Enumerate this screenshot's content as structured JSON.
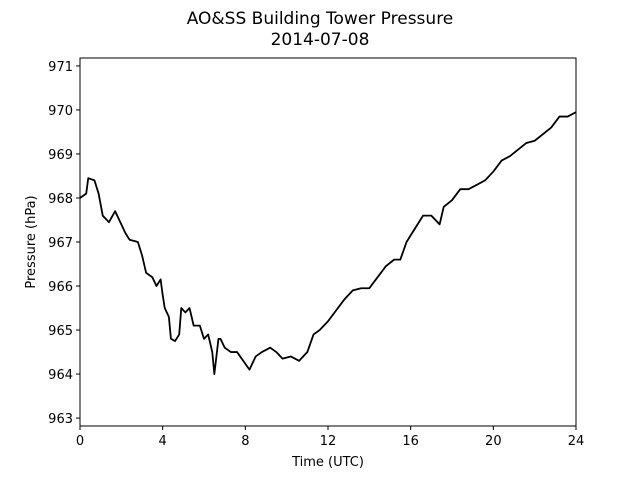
{
  "chart_data": {
    "type": "line",
    "title": "AO&SS Building Tower Pressure",
    "subtitle": "2014-07-08",
    "x_label": "Time (UTC)",
    "y_label": "Pressure (hPa)",
    "x": [
      0,
      0.3,
      0.4,
      0.7,
      0.9,
      1.1,
      1.4,
      1.7,
      1.9,
      2.2,
      2.4,
      2.8,
      3.0,
      3.2,
      3.5,
      3.7,
      3.9,
      4.0,
      4.1,
      4.3,
      4.4,
      4.6,
      4.8,
      4.9,
      5.1,
      5.3,
      5.5,
      5.8,
      6.0,
      6.2,
      6.4,
      6.5,
      6.7,
      6.8,
      7.0,
      7.3,
      7.6,
      7.9,
      8.2,
      8.5,
      8.8,
      9.2,
      9.5,
      9.8,
      10.2,
      10.6,
      11.0,
      11.3,
      11.6,
      12.0,
      12.4,
      12.8,
      13.2,
      13.6,
      14.0,
      14.4,
      14.8,
      15.2,
      15.5,
      15.8,
      16.2,
      16.6,
      17.0,
      17.2,
      17.4,
      17.6,
      18.0,
      18.4,
      18.8,
      19.2,
      19.6,
      20.0,
      20.4,
      20.8,
      21.2,
      21.6,
      22.0,
      22.4,
      22.8,
      23.2,
      23.6,
      24.0
    ],
    "series": [
      {
        "name": "Pressure",
        "color": "#000000",
        "values": [
          968.0,
          968.1,
          968.45,
          968.4,
          968.1,
          967.6,
          967.45,
          967.7,
          967.5,
          967.2,
          967.05,
          967.0,
          966.7,
          966.3,
          966.2,
          966.0,
          966.15,
          965.8,
          965.5,
          965.3,
          964.8,
          964.75,
          964.9,
          965.5,
          965.4,
          965.5,
          965.1,
          965.1,
          964.8,
          964.9,
          964.5,
          964.0,
          964.8,
          964.8,
          964.6,
          964.5,
          964.5,
          964.3,
          964.1,
          964.4,
          964.5,
          964.6,
          964.5,
          964.35,
          964.4,
          964.3,
          964.5,
          964.9,
          965.0,
          965.2,
          965.45,
          965.7,
          965.9,
          965.95,
          965.95,
          966.2,
          966.45,
          966.6,
          966.6,
          967.0,
          967.3,
          967.6,
          967.6,
          967.5,
          967.4,
          967.8,
          967.95,
          968.2,
          968.2,
          968.3,
          968.4,
          968.6,
          968.85,
          968.95,
          969.1,
          969.25,
          969.3,
          969.45,
          969.6,
          969.85,
          969.85,
          969.95
        ]
      }
    ],
    "xlim": [
      0,
      24
    ],
    "xticks": [
      0,
      4,
      8,
      12,
      16,
      20,
      24
    ],
    "ylim": [
      962.82,
      971.18
    ],
    "yticks": [
      963,
      964,
      965,
      966,
      967,
      968,
      969,
      970,
      971
    ],
    "grid": false
  }
}
